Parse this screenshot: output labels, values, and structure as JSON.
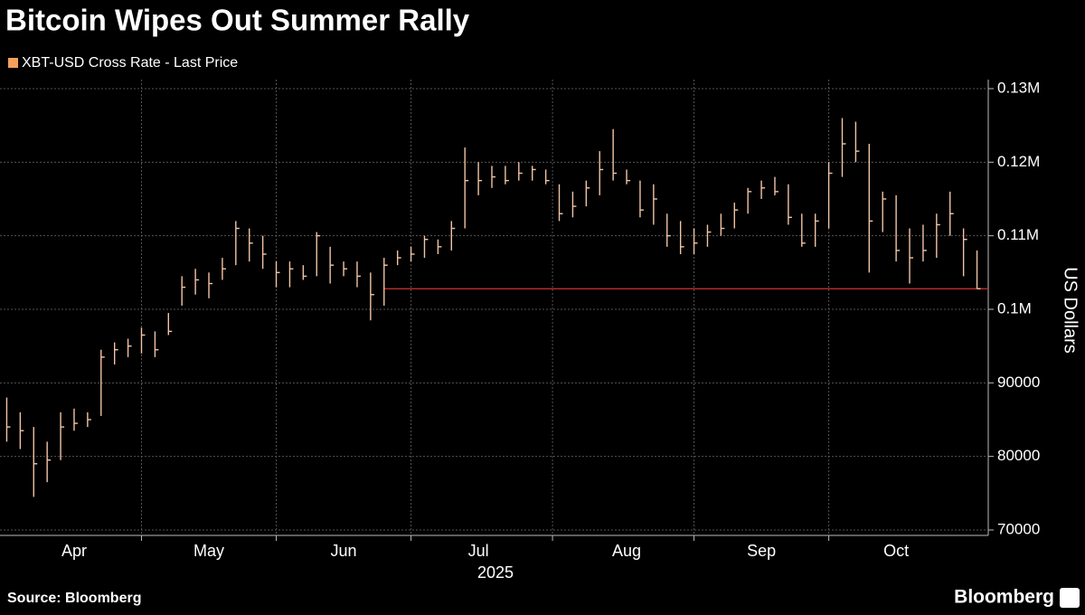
{
  "chart_data": {
    "type": "ohlc",
    "title": "Bitcoin Wipes Out Summer Rally",
    "ylabel": "US Dollars",
    "xlabel": "2025",
    "source": "Source: Bloomberg",
    "brand": "Bloomberg",
    "grid": true,
    "categories": [
      null,
      null,
      null,
      null,
      null,
      "Apr",
      null,
      null,
      null,
      null,
      null,
      null,
      null,
      null,
      null,
      "May",
      null,
      null,
      null,
      null,
      null,
      null,
      null,
      null,
      null,
      "Jun",
      null,
      null,
      null,
      null,
      null,
      null,
      null,
      null,
      null,
      "Jul",
      null,
      null,
      null,
      null,
      null,
      null,
      null,
      null,
      null,
      null,
      "Aug",
      null,
      null,
      null,
      null,
      null,
      null,
      null,
      null,
      null,
      "Sep",
      null,
      null,
      null,
      null,
      null,
      null,
      null,
      null,
      null,
      "Oct",
      null,
      null,
      null,
      null,
      null,
      null
    ],
    "series": [
      {
        "name": "XBT-USD Cross Rate - Last Price",
        "color": "#f2c4a4",
        "legend_color": "#f5a05a",
        "high": [
          88000,
          86000,
          84000,
          82000,
          86000,
          86500,
          86000,
          94500,
          95500,
          96000,
          97500,
          97000,
          99500,
          104500,
          105500,
          105000,
          107000,
          112000,
          111000,
          110000,
          106500,
          106500,
          106000,
          110500,
          108500,
          106500,
          106500,
          105000,
          107000,
          108000,
          108500,
          110000,
          109500,
          112000,
          122000,
          120000,
          119500,
          119500,
          120000,
          119500,
          119000,
          117000,
          116000,
          117500,
          121500,
          124500,
          119000,
          117500,
          117000,
          113000,
          112000,
          111000,
          111500,
          113000,
          114500,
          116500,
          117500,
          118000,
          117000,
          113000,
          113000,
          120000,
          126000,
          125500,
          122500,
          116000,
          115500,
          111000,
          111500,
          113000,
          116000,
          111000,
          108000
        ],
        "low": [
          82000,
          81000,
          74500,
          76500,
          79500,
          83500,
          84000,
          85500,
          92500,
          93500,
          94000,
          93500,
          96500,
          100500,
          102000,
          101500,
          104000,
          106000,
          106500,
          105500,
          103000,
          103000,
          104000,
          104500,
          103500,
          104500,
          103000,
          98500,
          100500,
          106000,
          106500,
          107000,
          107500,
          108000,
          111000,
          115500,
          116500,
          117000,
          117500,
          117500,
          117000,
          112000,
          112500,
          114000,
          115500,
          117500,
          117000,
          112500,
          111500,
          108500,
          107500,
          107500,
          108500,
          110000,
          111000,
          113000,
          115000,
          115500,
          111500,
          108500,
          108500,
          111000,
          118000,
          120000,
          105000,
          110500,
          106500,
          103500,
          106500,
          107000,
          110000,
          104500,
          102800
        ],
        "close": [
          84000,
          83500,
          79000,
          79500,
          84000,
          84500,
          85000,
          93500,
          94500,
          95000,
          96500,
          94500,
          97000,
          103000,
          104000,
          103500,
          105500,
          111000,
          109000,
          107500,
          105000,
          105500,
          104500,
          110000,
          106000,
          105500,
          104500,
          102000,
          106000,
          107000,
          107500,
          109500,
          108500,
          111000,
          117500,
          117500,
          118000,
          117500,
          118500,
          119000,
          117500,
          113000,
          114000,
          116500,
          119000,
          118500,
          117500,
          113500,
          115000,
          110000,
          108500,
          109000,
          110500,
          111000,
          113500,
          116000,
          116500,
          116000,
          112500,
          109000,
          112000,
          118500,
          122500,
          121500,
          112000,
          115000,
          108000,
          107000,
          108000,
          111500,
          113000,
          109500,
          102800
        ]
      }
    ],
    "reference_line": {
      "value": 102800,
      "color": "#d0342c"
    },
    "ylim": [
      69260,
      131230
    ],
    "yticks": [
      70000,
      80000,
      90000,
      {
        "value": 100000,
        "label": "0.1M"
      },
      {
        "value": 110000,
        "label": "0.11M"
      },
      {
        "value": 120000,
        "label": "0.12M"
      },
      {
        "value": 130000,
        "label": "0.13M"
      }
    ]
  }
}
